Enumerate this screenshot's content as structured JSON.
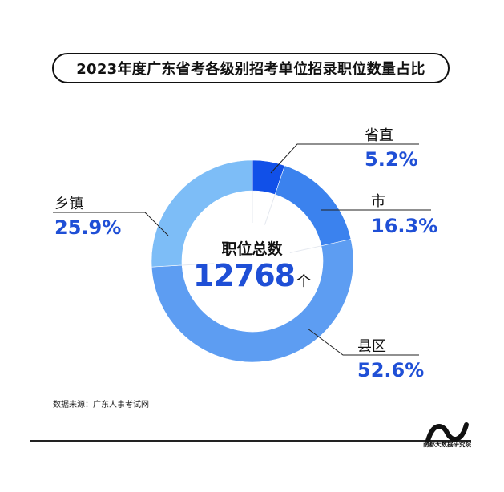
{
  "title": "2023年度广东省考各级别招考单位招录职位数量占比",
  "center": {
    "label": "职位总数",
    "total": "12768",
    "unit": "个"
  },
  "source": "数据来源：广东人事考试网",
  "logo_text": "南都大数据研究院",
  "colors": {
    "省直": "#1150e8",
    "市": "#3b82ee",
    "县区": "#5d9df2",
    "乡镇": "#7dbdf7",
    "pct_text": "#1f4fd6"
  },
  "chart_data": {
    "type": "pie",
    "title": "2023年度广东省考各级别招考单位招录职位数量占比",
    "donut": true,
    "categories": [
      "省直",
      "市",
      "县区",
      "乡镇"
    ],
    "values": [
      5.2,
      16.3,
      52.6,
      25.9
    ],
    "value_labels": [
      "5.2%",
      "16.3%",
      "52.6%",
      "25.9%"
    ],
    "start": "12 o'clock",
    "direction": "clockwise"
  }
}
